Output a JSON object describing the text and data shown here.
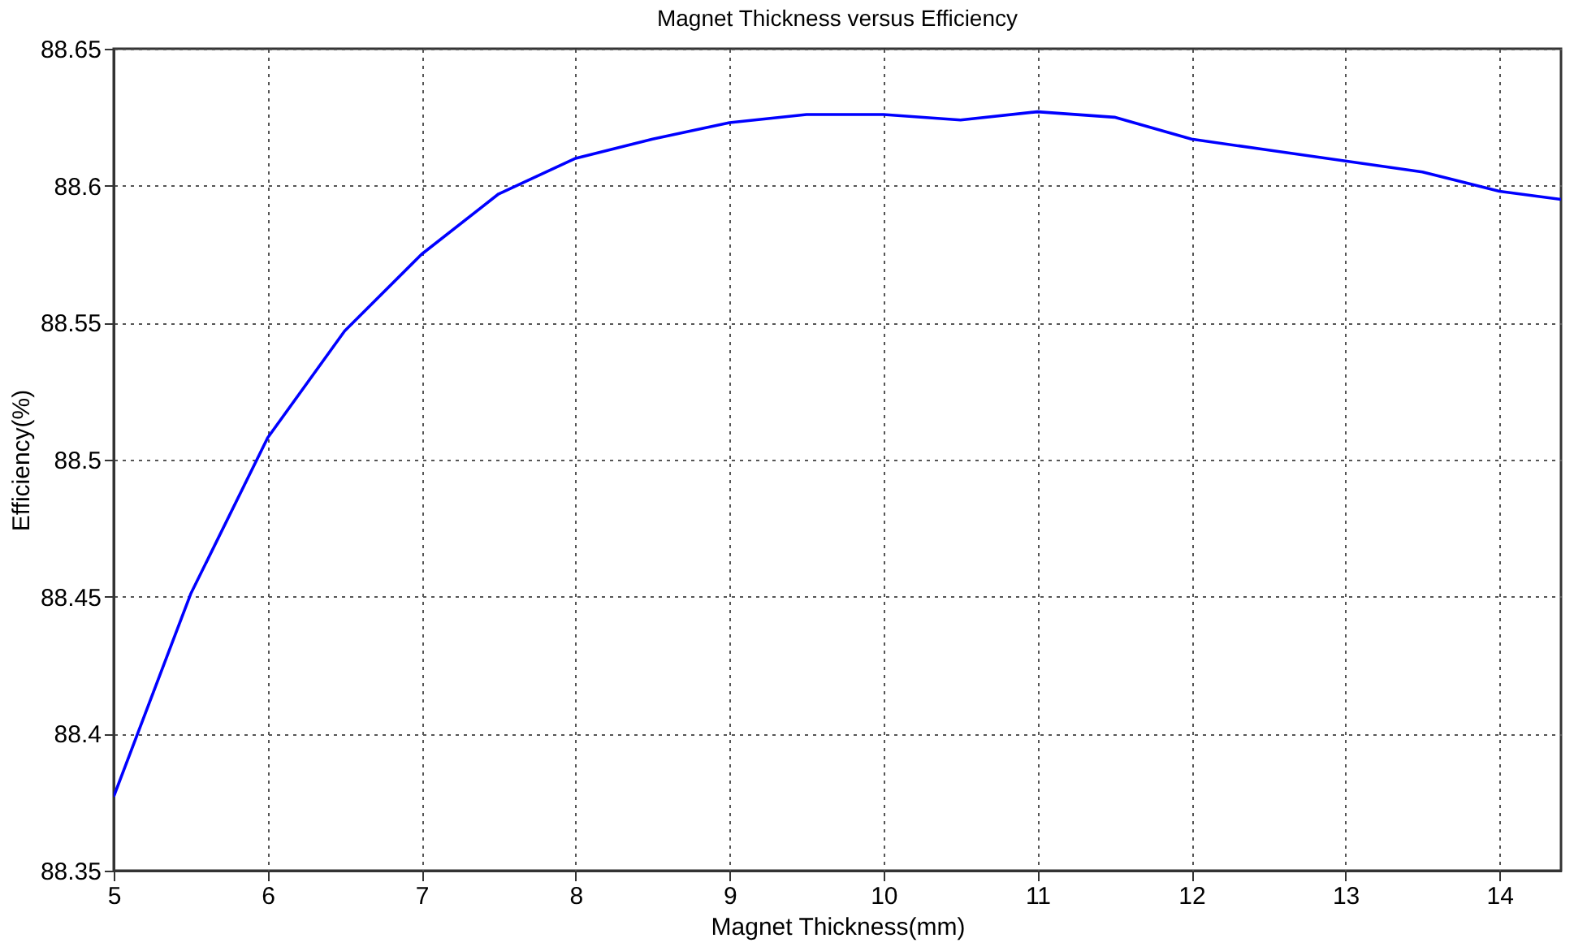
{
  "chart_data": {
    "type": "line",
    "title": "Magnet Thickness versus Efficiency",
    "xlabel": "Magnet Thickness(mm)",
    "ylabel": "Efficiency(%)",
    "x": [
      5,
      5.5,
      6,
      6.5,
      7,
      7.5,
      8,
      8.5,
      9,
      9.5,
      10,
      10.5,
      11,
      11.5,
      12,
      12.5,
      13,
      13.5,
      14,
      14.4
    ],
    "series": [
      {
        "color": "#0000ff",
        "values": [
          88.377,
          88.451,
          88.508,
          88.547,
          88.575,
          88.597,
          88.61,
          88.617,
          88.623,
          88.626,
          88.626,
          88.624,
          88.627,
          88.625,
          88.617,
          88.613,
          88.609,
          88.605,
          88.598,
          88.595
        ]
      }
    ],
    "xlim": [
      5,
      14.4
    ],
    "xticks": [
      5,
      6,
      7,
      8,
      9,
      10,
      11,
      12,
      13,
      14
    ],
    "ylim": [
      88.35,
      88.65
    ],
    "yticks": [
      88.35,
      88.4,
      88.45,
      88.5,
      88.55,
      88.6,
      88.65
    ],
    "grid": true,
    "marker": "none",
    "line_style": "solid"
  }
}
